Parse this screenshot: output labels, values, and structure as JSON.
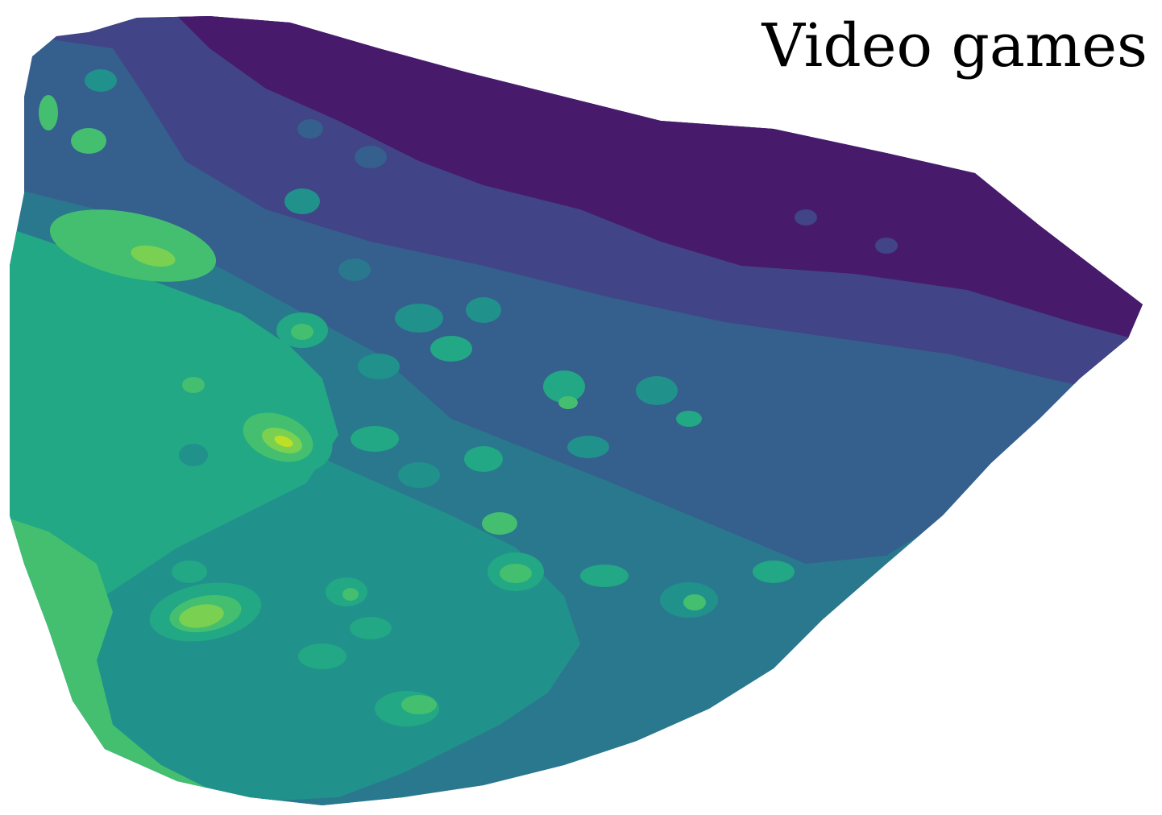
{
  "chart_data": {
    "type": "heatmap",
    "subtype": "filled-contour",
    "title": "Video games",
    "xlabel": "",
    "ylabel": "",
    "axes_visible": false,
    "grid": false,
    "legend": "none",
    "colormap": "viridis",
    "levels": [
      {
        "level": 0,
        "color": "#481a6c"
      },
      {
        "level": 1,
        "color": "#414487"
      },
      {
        "level": 2,
        "color": "#355f8d"
      },
      {
        "level": 3,
        "color": "#2a788e"
      },
      {
        "level": 4,
        "color": "#21918c"
      },
      {
        "level": 5,
        "color": "#22a884"
      },
      {
        "level": 6,
        "color": "#44bf70"
      },
      {
        "level": 7,
        "color": "#7ad151"
      },
      {
        "level": 8,
        "color": "#bddf26"
      }
    ],
    "hotspots": [
      {
        "id": "main-peak",
        "level": 8,
        "approx_region": "center-left"
      },
      {
        "id": "upper-left-ridge",
        "level": 7,
        "approx_region": "upper-left"
      },
      {
        "id": "lower-left-peak",
        "level": 7,
        "approx_region": "lower-left"
      }
    ]
  }
}
